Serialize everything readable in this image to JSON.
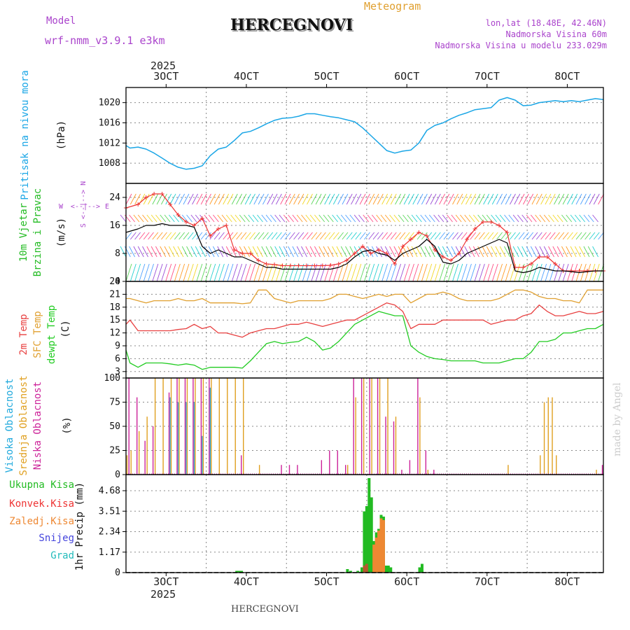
{
  "header": {
    "station": "HERCEGNOVI",
    "model_label": "Model",
    "model_name": "wrf-nmm_v3.9.1 e3km",
    "meteogram_label": "Meteogram",
    "coords": "lon,lat (18.48E, 42.46N)",
    "elevation": "Nadmorska Visina 60m",
    "model_elevation": "Nadmorska Visina u modelu 233.029m",
    "footer_station": "HERCEGNOVI",
    "credit": "made by Angel",
    "year_label": "2025"
  },
  "colors": {
    "pressure": "#1aa6e6",
    "t2m": "#e84040",
    "tsfc": "#e0a030",
    "dewpoint": "#22cc22",
    "cloud_high": "#22aadd",
    "cloud_mid": "#e0a020",
    "cloud_low": "#cc2299",
    "precip_total": "#22bb22",
    "precip_conv": "#ee3333",
    "precip_strat": "#ee8833",
    "precip_snow": "#4444dd",
    "precip_hail": "#22bbbb",
    "wind_speed": "#000000",
    "gust": "#ee3333",
    "wind_axis": "#aa44cc"
  },
  "chart_data": [
    {
      "type": "line",
      "panel": "pressure",
      "ylabel": "Pritisak na nivou mora",
      "unit": "(hPa)",
      "ylim": [
        1004,
        1023
      ],
      "yticks": [
        1008,
        1012,
        1016,
        1020
      ],
      "xlim": [
        25.5,
        85.0
      ],
      "x_tick_labels": [
        "3OCT",
        "4OCT",
        "5OCT",
        "6OCT",
        "7OCT",
        "8OCT"
      ],
      "x": [
        25.5,
        26,
        27,
        28,
        29,
        30,
        31,
        32,
        33,
        34,
        35,
        36,
        37,
        38,
        39,
        40,
        41,
        42,
        43,
        44,
        45,
        46,
        47,
        48,
        49,
        50,
        51,
        52,
        53,
        54,
        55,
        56,
        57,
        58,
        59,
        60,
        61,
        62,
        63,
        64,
        65,
        66,
        67,
        68,
        69,
        70,
        71,
        72,
        73,
        74,
        75,
        76,
        77,
        78,
        79,
        80,
        81,
        82,
        83,
        84,
        85
      ],
      "series": [
        {
          "name": "MSLP",
          "values": [
            1011.5,
            1011,
            1011.2,
            1010.8,
            1010,
            1009,
            1008,
            1007.2,
            1006.8,
            1007,
            1007.5,
            1009.5,
            1010.8,
            1011.2,
            1012.5,
            1014,
            1014.3,
            1015,
            1015.8,
            1016.5,
            1016.9,
            1017,
            1017.3,
            1017.8,
            1017.8,
            1017.5,
            1017.2,
            1017,
            1016.6,
            1016.2,
            1015,
            1013.5,
            1012,
            1010.5,
            1010,
            1010.4,
            1010.6,
            1012,
            1014.5,
            1015.5,
            1016,
            1016.8,
            1017.5,
            1018,
            1018.6,
            1018.8,
            1019,
            1020.5,
            1021,
            1020.5,
            1019.4,
            1019.5,
            1020,
            1020.2,
            1020.4,
            1020.2,
            1020.4,
            1020.2,
            1020.5,
            1020.8,
            1020.6
          ]
        }
      ]
    },
    {
      "type": "line",
      "panel": "wind",
      "ylabel": "10m Vjetar Brzina i Pravac",
      "unit": "(m/s)",
      "ylim": [
        0,
        28
      ],
      "yticks": [
        0,
        8,
        16,
        24
      ],
      "compass": {
        "n": "N",
        "s": "S",
        "e": "E",
        "w": "W"
      },
      "x": [
        25.5,
        27,
        28,
        29,
        30,
        31,
        32,
        33,
        34,
        35,
        36,
        37,
        38,
        39,
        40,
        41,
        42,
        43,
        44,
        45,
        46,
        47,
        48,
        49,
        50,
        51,
        52,
        53,
        54,
        55,
        56,
        57,
        58,
        59,
        60,
        61,
        62,
        63,
        64,
        65,
        66,
        67,
        68,
        69,
        70,
        71,
        72,
        73,
        74,
        75,
        76,
        77,
        78,
        79,
        80,
        81,
        82,
        83,
        84,
        85
      ],
      "series": [
        {
          "name": "wind speed",
          "values": [
            14,
            15,
            16,
            16,
            16.5,
            16,
            16,
            16,
            15.5,
            10,
            8,
            9,
            8,
            7,
            7,
            6,
            5,
            4,
            4,
            3.5,
            3.5,
            3.5,
            3.5,
            3.5,
            3.5,
            3.5,
            4,
            5,
            7,
            8.5,
            9,
            8,
            7.5,
            6,
            8,
            9,
            10,
            12,
            10,
            5.5,
            5,
            6,
            8,
            9,
            10,
            11,
            12,
            11,
            3,
            2.5,
            3,
            4,
            3.5,
            3,
            3,
            2.8,
            2.5,
            2.8,
            3,
            3
          ]
        },
        {
          "name": "wind gust",
          "values": [
            21,
            22,
            24,
            25,
            25,
            22,
            19,
            17,
            16,
            18,
            13,
            15,
            16,
            9,
            8,
            8,
            6,
            5,
            4.8,
            4.5,
            4.5,
            4.5,
            4.5,
            4.5,
            4.5,
            4.6,
            5,
            6,
            8,
            10,
            8,
            9,
            8,
            5,
            10,
            12,
            14,
            13,
            9,
            7,
            6,
            8,
            12,
            15,
            17,
            17,
            16,
            14,
            4,
            4,
            5,
            7,
            7,
            5,
            3,
            3,
            3,
            3,
            3,
            3
          ]
        }
      ]
    },
    {
      "type": "line",
      "panel": "temperature",
      "ylabel": "2m Temp / SFC Temp / dewpt Temp",
      "unit": "(C)",
      "ylim": [
        1.5,
        24
      ],
      "yticks": [
        3,
        6,
        9,
        12,
        15,
        18,
        21,
        24
      ],
      "x": [
        25.5,
        26,
        27,
        28,
        29,
        30,
        31,
        32,
        33,
        34,
        35,
        36,
        37,
        38,
        39,
        40,
        41,
        42,
        43,
        44,
        45,
        46,
        47,
        48,
        49,
        50,
        51,
        52,
        53,
        54,
        55,
        56,
        57,
        58,
        59,
        60,
        61,
        62,
        63,
        64,
        65,
        66,
        67,
        68,
        69,
        70,
        71,
        72,
        73,
        74,
        75,
        76,
        77,
        78,
        79,
        80,
        81,
        82,
        83,
        84,
        85
      ],
      "series": [
        {
          "name": "2m Temp",
          "values": [
            14,
            15,
            12.5,
            12.5,
            12.5,
            12.5,
            12.5,
            12.8,
            13,
            14,
            13,
            13.5,
            12,
            12,
            11.5,
            11,
            12,
            12.5,
            13,
            13,
            13.5,
            14,
            14,
            14.5,
            14,
            13.5,
            14,
            14.5,
            15,
            15,
            16,
            17,
            18,
            19,
            18.5,
            17,
            13,
            14,
            14,
            14,
            15,
            15,
            15,
            15,
            15,
            15,
            14,
            14.5,
            15,
            15,
            16,
            16.5,
            18.5,
            17,
            16,
            16,
            16.5,
            17,
            16.5,
            16.5,
            17
          ]
        },
        {
          "name": "SFC Temp",
          "values": [
            20,
            20,
            19.5,
            19,
            19.5,
            19.5,
            19.5,
            20,
            19.5,
            19.5,
            20,
            19,
            19,
            19,
            19,
            18.8,
            19,
            22,
            22,
            20,
            19.5,
            19,
            19.5,
            19.5,
            19.5,
            19.5,
            20,
            21,
            21,
            20.5,
            20,
            20.5,
            21,
            20.5,
            21,
            21,
            19,
            20,
            21,
            21,
            21.5,
            21,
            20,
            19.5,
            19.5,
            19.5,
            19.5,
            20,
            21,
            22,
            22,
            21.5,
            20.5,
            20,
            20,
            19.5,
            19.5,
            19,
            22,
            22,
            22
          ]
        },
        {
          "name": "dewpt Temp",
          "values": [
            8,
            5,
            4,
            5,
            5,
            5,
            4.8,
            4.5,
            4.8,
            4.5,
            3.5,
            4,
            4,
            4,
            4,
            3.8,
            5.5,
            7.5,
            9.5,
            10,
            9.5,
            9.8,
            10,
            11,
            10,
            8,
            8.5,
            10,
            12,
            14,
            15,
            16,
            17,
            16.5,
            16,
            16,
            9,
            7.5,
            6.5,
            6,
            5.8,
            5.5,
            5.5,
            5.5,
            5.5,
            5,
            5,
            5,
            5.5,
            6,
            6,
            7.5,
            10,
            10,
            10.5,
            12,
            12,
            12.5,
            13,
            13,
            14
          ]
        }
      ]
    },
    {
      "type": "bar",
      "panel": "clouds",
      "ylabel": "Visoka Oblacnost / Srednja Oblacnost / Niska Oblacnost",
      "unit": "(%)",
      "ylim": [
        0,
        100
      ],
      "yticks": [
        0,
        25,
        50,
        75,
        100
      ],
      "series": [
        {
          "name": "Visoka Oblacnost",
          "x": [
            31,
            32,
            33,
            34,
            35,
            36
          ],
          "values": [
            80,
            75,
            75,
            75,
            40,
            90
          ]
        },
        {
          "name": "Srednja Oblacnost",
          "x": [
            25.5,
            26,
            27,
            28,
            29,
            30,
            31,
            32,
            33,
            34,
            35,
            36,
            37,
            38,
            39,
            40,
            42,
            53,
            54,
            55,
            56,
            57,
            58,
            59,
            62,
            63,
            73,
            77,
            77.5,
            78,
            78.5,
            79,
            84
          ],
          "values": [
            20,
            25,
            45,
            60,
            100,
            100,
            100,
            100,
            100,
            100,
            100,
            100,
            100,
            100,
            100,
            100,
            10,
            10,
            80,
            100,
            100,
            100,
            100,
            60,
            80,
            5,
            10,
            20,
            75,
            80,
            80,
            20,
            5
          ]
        },
        {
          "name": "Niska Oblacnost",
          "x": [
            26,
            27,
            28,
            29,
            31,
            32,
            33,
            34,
            35,
            36,
            40,
            45,
            46,
            47,
            50,
            51,
            52,
            53,
            54,
            55,
            56,
            57,
            58,
            59,
            60,
            61,
            62,
            63,
            64,
            85
          ],
          "values": [
            100,
            80,
            35,
            50,
            85,
            100,
            100,
            100,
            100,
            100,
            20,
            10,
            10,
            10,
            15,
            25,
            25,
            10,
            100,
            100,
            100,
            100,
            60,
            55,
            5,
            15,
            100,
            25,
            5,
            10
          ]
        }
      ]
    },
    {
      "type": "bar",
      "panel": "precipitation",
      "ylabel": "1hr Precip",
      "unit": "(mm)",
      "ylim": [
        0,
        5.6
      ],
      "yticks": [
        0,
        1.17,
        2.34,
        3.51,
        4.68
      ],
      "legend": [
        "Ukupna Kisa",
        "Konvek.Kisa",
        "Zaledj.Kisa",
        "Snijeg",
        "Grad"
      ],
      "series": [
        {
          "name": "Ukupna Kisa",
          "x": [
            39.3,
            39.6,
            39.9,
            53.1,
            53.5,
            54.4,
            54.9,
            55.2,
            55.5,
            55.8,
            56.1,
            56.4,
            56.7,
            57.0,
            57.3,
            57.6,
            57.9,
            58.2,
            58.5,
            62.1,
            62.4
          ],
          "values": [
            0.1,
            0.1,
            0.1,
            0.2,
            0.1,
            0.1,
            0.3,
            3.5,
            3.8,
            5.4,
            4.3,
            1.8,
            2.3,
            2.5,
            3.3,
            3.2,
            0.4,
            0.4,
            0.3,
            0.3,
            0.5
          ]
        },
        {
          "name": "Konvek.Kisa",
          "x": [
            55.2,
            55.5,
            56.4,
            56.7,
            57.0,
            57.3,
            57.6
          ],
          "values": [
            0.4,
            0.5,
            0.6,
            0.7,
            0.8,
            0.9,
            0.8
          ]
        },
        {
          "name": "Zaledj.Kisa",
          "x": [
            56.4,
            56.7,
            57.0,
            57.3,
            57.6
          ],
          "values": [
            1.6,
            2.0,
            2.4,
            3.1,
            3.0
          ]
        },
        {
          "name": "Snijeg",
          "x": [],
          "values": []
        },
        {
          "name": "Grad",
          "x": [],
          "values": []
        }
      ]
    }
  ]
}
